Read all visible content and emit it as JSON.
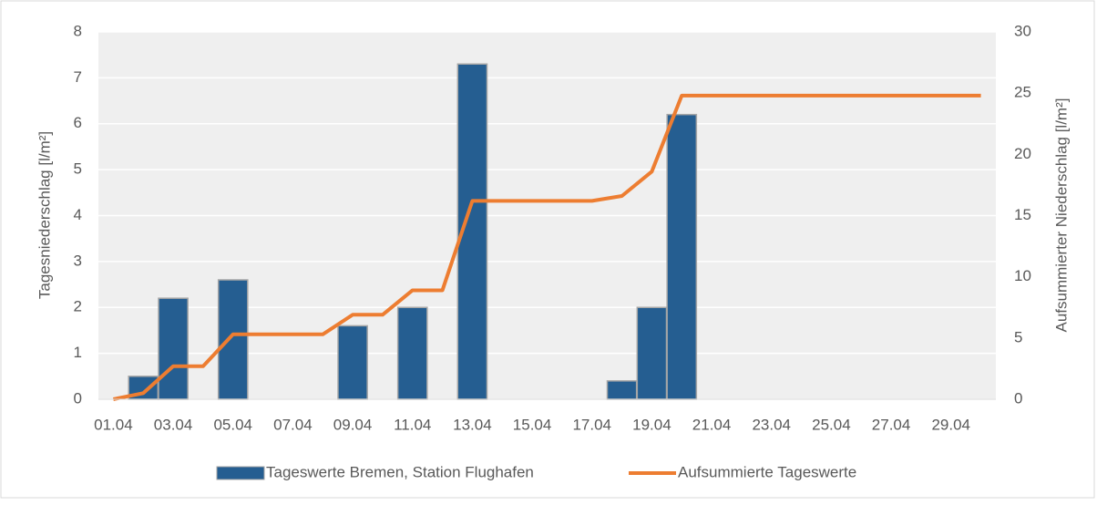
{
  "chart_data": {
    "type": "combo",
    "categories": [
      "01.04",
      null,
      "03.04",
      null,
      "05.04",
      null,
      "07.04",
      null,
      "09.04",
      null,
      "11.04",
      null,
      "13.04",
      null,
      "15.04",
      null,
      "17.04",
      null,
      "19.04",
      null,
      "21.04",
      null,
      "23.04",
      null,
      "25.04",
      null,
      "27.04",
      null,
      "29.04",
      null
    ],
    "series": [
      {
        "name": "Tageswerte Bremen, Station Flughafen",
        "type": "bar",
        "color": "#255e91",
        "values": [
          0,
          0.5,
          2.2,
          0,
          2.6,
          0,
          0,
          0,
          1.6,
          0,
          2.0,
          0,
          7.3,
          0,
          0,
          0,
          0,
          0.4,
          2.0,
          6.2,
          0,
          0,
          0,
          0,
          0,
          0,
          0,
          0,
          0,
          0
        ]
      },
      {
        "name": "Aufsummierte Tageswerte",
        "type": "line",
        "axis": "y2",
        "color": "#ed7d31",
        "values": [
          0,
          0.5,
          2.7,
          2.7,
          5.3,
          5.3,
          5.3,
          5.3,
          6.9,
          6.9,
          8.9,
          8.9,
          16.2,
          16.2,
          16.2,
          16.2,
          16.2,
          16.6,
          18.6,
          24.8,
          24.8,
          24.8,
          24.8,
          24.8,
          24.8,
          24.8,
          24.8,
          24.8,
          24.8,
          24.8
        ]
      }
    ],
    "y_label": "Tagesniederschlag [l/m²]",
    "y2_label": "Aufsummierter Niederschlag [l/m²]",
    "ylim": [
      0,
      8
    ],
    "yticks": [
      0,
      1,
      2,
      3,
      4,
      5,
      6,
      7,
      8
    ],
    "y2lim": [
      0,
      30
    ],
    "y2ticks": [
      0,
      5,
      10,
      15,
      20,
      25,
      30
    ],
    "grid": true,
    "legend": "bottom"
  }
}
